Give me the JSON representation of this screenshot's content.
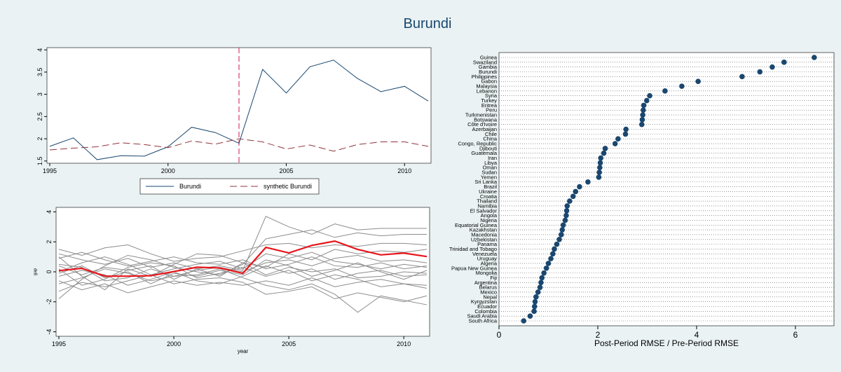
{
  "chart_data": [
    {
      "type": "line",
      "title": "Burundi",
      "x": [
        1995,
        1996,
        1997,
        1998,
        1999,
        2000,
        2001,
        2002,
        2003,
        2004,
        2005,
        2006,
        2007,
        2008,
        2009,
        2010,
        2011
      ],
      "series": [
        {
          "name": "Burundi",
          "color": "#1a476f",
          "dash": "none",
          "values": [
            1.83,
            2.02,
            1.53,
            1.62,
            1.61,
            1.82,
            2.26,
            2.14,
            1.9,
            3.56,
            3.03,
            3.62,
            3.77,
            3.36,
            3.06,
            3.18,
            2.85
          ]
        },
        {
          "name": "synthetic Burundi",
          "color": "#90353b",
          "dash": "10 5",
          "values": [
            1.75,
            1.79,
            1.82,
            1.91,
            1.87,
            1.8,
            1.95,
            1.88,
            2.0,
            1.93,
            1.77,
            1.86,
            1.72,
            1.87,
            1.93,
            1.93,
            1.83
          ]
        }
      ],
      "xline": 2003,
      "xline_color": "#d6406b",
      "xlim": [
        1995,
        2011
      ],
      "xticks": [
        1995,
        2000,
        2005,
        2010
      ],
      "ylim": [
        1.45,
        4.05
      ],
      "yticks": [
        1.5,
        2,
        2.5,
        3,
        3.5,
        4
      ]
    },
    {
      "type": "line",
      "x_label": "year",
      "y_label": "gap",
      "x": [
        1995,
        1996,
        1997,
        1998,
        1999,
        2000,
        2001,
        2002,
        2003,
        2004,
        2005,
        2006,
        2007,
        2008,
        2009,
        2010,
        2011
      ],
      "series": [
        {
          "color": "#8c8c8c",
          "values": [
            1.2,
            0.8,
            0.5,
            0.9,
            0.3,
            0.6,
            0.2,
            0.4,
            0.1,
            3.7,
            3.0,
            2.5,
            3.2,
            2.8,
            2.9,
            2.9,
            2.9
          ]
        },
        {
          "color": "#8c8c8c",
          "values": [
            -1.8,
            -0.5,
            0.4,
            1.1,
            0.8,
            0.3,
            0.0,
            -0.2,
            0.5,
            2.2,
            2.5,
            2.8,
            2.3,
            2.6,
            2.4,
            2.5,
            2.5
          ]
        },
        {
          "color": "#8c8c8c",
          "values": [
            1.5,
            1.1,
            1.6,
            1.8,
            1.2,
            0.7,
            0.9,
            1.0,
            1.4,
            1.8,
            1.9,
            1.6,
            1.8,
            1.7,
            1.9,
            1.9,
            1.8
          ]
        },
        {
          "color": "#8c8c8c",
          "values": [
            0.5,
            0.3,
            -0.6,
            -0.4,
            0.2,
            -0.3,
            0.1,
            0.3,
            0.0,
            0.6,
            0.8,
            0.4,
            0.9,
            1.1,
            0.7,
            0.8,
            0.6
          ]
        },
        {
          "color": "#8c8c8c",
          "values": [
            -0.8,
            -0.4,
            0.2,
            -0.1,
            -0.6,
            -0.3,
            -0.2,
            0.2,
            -0.4,
            -0.9,
            -1.2,
            -0.8,
            -1.5,
            -2.7,
            -1.6,
            -1.9,
            -2.2
          ]
        },
        {
          "color": "#8c8c8c",
          "values": [
            0.2,
            -0.9,
            -0.5,
            0.3,
            0.6,
            0.4,
            -0.4,
            -0.1,
            0.3,
            -0.3,
            0.1,
            -0.6,
            -0.2,
            -0.5,
            -1.0,
            -0.8,
            -1.1
          ]
        },
        {
          "color": "#8c8c8c",
          "values": [
            -1.3,
            -0.7,
            -1.0,
            -0.6,
            -0.2,
            -0.8,
            -0.5,
            -0.4,
            -0.7,
            -1.5,
            -1.3,
            -1.0,
            -1.8,
            -1.4,
            -1.7,
            -2.0,
            -1.6
          ]
        },
        {
          "color": "#8c8c8c",
          "values": [
            0.9,
            1.3,
            0.8,
            0.4,
            0.7,
            1.0,
            0.6,
            0.5,
            0.8,
            0.2,
            0.5,
            1.0,
            0.4,
            0.3,
            0.6,
            0.2,
            0.4
          ]
        },
        {
          "color": "#8c8c8c",
          "values": [
            -0.3,
            0.1,
            -0.2,
            -0.9,
            -0.5,
            0.0,
            -0.6,
            -0.8,
            -0.3,
            0.4,
            -0.1,
            0.2,
            -0.5,
            -0.1,
            0.1,
            -0.3,
            -0.2
          ]
        },
        {
          "color": "#8c8c8c",
          "values": [
            0.0,
            0.6,
            1.0,
            0.5,
            -0.2,
            0.2,
            0.5,
            0.7,
            0.2,
            1.2,
            0.9,
            1.3,
            0.7,
            0.5,
            0.2,
            0.5,
            0.3
          ]
        },
        {
          "color": "#8c8c8c",
          "values": [
            -0.6,
            -1.2,
            -0.8,
            -1.4,
            -1.0,
            -0.6,
            -0.9,
            -0.7,
            -0.9,
            -0.6,
            -0.9,
            -0.4,
            -1.0,
            -0.7,
            -0.5,
            -0.8,
            -0.9
          ]
        },
        {
          "color": "#8c8c8c",
          "values": [
            0.4,
            -0.2,
            0.3,
            0.1,
            0.4,
            -0.5,
            0.2,
            -0.3,
            0.6,
            -0.2,
            0.3,
            0.0,
            0.2,
            -0.4,
            -0.3,
            0.0,
            -0.1
          ]
        },
        {
          "color": "#8c8c8c",
          "values": [
            -0.1,
            0.4,
            -0.4,
            0.0,
            -0.8,
            -0.1,
            -0.3,
            0.1,
            -0.2,
            0.8,
            0.4,
            -0.3,
            0.1,
            0.6,
            0.0,
            -0.5,
            0.1
          ]
        },
        {
          "color": "#8c8c8c",
          "values": [
            1.0,
            -0.3,
            -1.2,
            0.2,
            -0.3,
            0.5,
            1.2,
            1.1,
            0.6,
            0.3,
            1.2,
            0.8,
            1.5,
            1.2,
            1.4,
            1.3,
            1.5
          ]
        },
        {
          "color": "#e8141a",
          "values": [
            0.08,
            0.23,
            -0.29,
            -0.29,
            -0.26,
            0.02,
            0.31,
            0.26,
            -0.1,
            1.63,
            1.26,
            1.76,
            2.05,
            1.49,
            1.13,
            1.25,
            1.02
          ]
        }
      ],
      "xlim": [
        1995,
        2011
      ],
      "xticks": [
        1995,
        2000,
        2005,
        2010
      ],
      "ylim": [
        -4.3,
        4.3
      ],
      "yticks": [
        -4,
        -2,
        0,
        2,
        4
      ]
    },
    {
      "type": "dot",
      "x_label": "Post-Period RMSE / Pre-Period RMSE",
      "color": "#1a476f",
      "grid": true,
      "categories": [
        "Guinea",
        "Swaziland",
        "Gambia",
        "Burundi",
        "Philippines",
        "Gabon",
        "Malaysia",
        "Lebanon",
        "Syria",
        "Turkey",
        "Eritrea",
        "Peru",
        "Turkmenistan",
        "Botswana",
        "Côte d'Ivoire",
        "Azerbaijan",
        "Chile",
        "China",
        "Congo, Republic",
        "Djibouti",
        "Guatemala",
        "Iran",
        "Libya",
        "Oman",
        "Sudan",
        "Yemen",
        "Sri Lanka",
        "Brazil",
        "Ukraine",
        "Croatia",
        "Thailand",
        "Namibia",
        "El Salvador",
        "Angola",
        "Nigeria",
        "Equatorial Guinea",
        "Kazakhstan",
        "Macedonia",
        "Uzbekistan",
        "Panama",
        "Trinidad and Tobago",
        "Venezuela",
        "Uruguay",
        "Algeria",
        "Papua New Guinea",
        "Mongolia",
        "Fiji",
        "Argentina",
        "Belarus",
        "Mexico",
        "Nepal",
        "Kyrgyzstan",
        "Ecuador",
        "Colombia",
        "Saudi Arabia",
        "South Africa"
      ],
      "values": [
        6.38,
        5.77,
        5.53,
        5.28,
        4.92,
        4.03,
        3.7,
        3.36,
        3.05,
        2.99,
        2.93,
        2.92,
        2.91,
        2.9,
        2.89,
        2.57,
        2.56,
        2.41,
        2.35,
        2.15,
        2.12,
        2.06,
        2.05,
        2.04,
        2.03,
        2.02,
        1.8,
        1.63,
        1.55,
        1.5,
        1.43,
        1.38,
        1.37,
        1.36,
        1.34,
        1.3,
        1.28,
        1.26,
        1.22,
        1.17,
        1.12,
        1.09,
        1.05,
        1.0,
        0.96,
        0.91,
        0.87,
        0.85,
        0.83,
        0.79,
        0.75,
        0.73,
        0.72,
        0.71,
        0.63,
        0.5
      ],
      "xlim": [
        0,
        6.78
      ],
      "xticks": [
        0,
        2,
        4,
        6
      ]
    }
  ]
}
